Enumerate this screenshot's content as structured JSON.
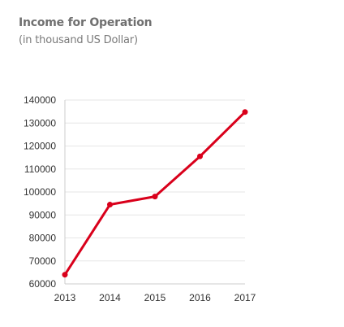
{
  "header": {
    "title": "Income for Operation",
    "subtitle": "(in thousand US Dollar)"
  },
  "colors": {
    "line": "#d9001b",
    "grid": "#e6e6e6",
    "axis": "#cccccc",
    "text": "#333333"
  },
  "chart_data": {
    "type": "line",
    "title": "Income for Operation",
    "subtitle": "(in thousand US Dollar)",
    "categories": [
      "2013",
      "2014",
      "2015",
      "2016",
      "2017"
    ],
    "series": [
      {
        "values": [
          64000,
          94500,
          98000,
          115500,
          134800
        ]
      }
    ],
    "ylim": [
      60000,
      140000
    ],
    "yticks": [
      60000,
      70000,
      80000,
      90000,
      100000,
      110000,
      120000,
      130000,
      140000
    ],
    "grid": true,
    "legend": "none"
  }
}
